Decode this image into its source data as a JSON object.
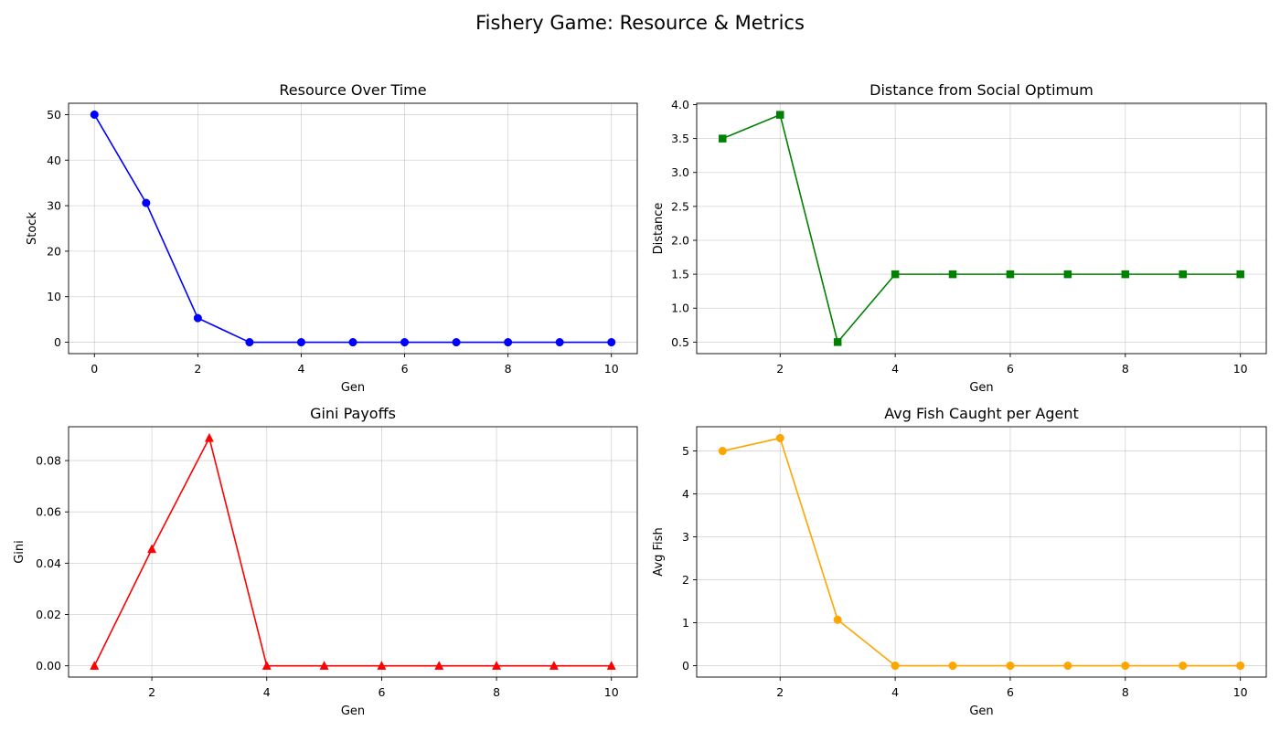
{
  "figure_title": "Fishery Game: Resource & Metrics",
  "chart_data": [
    {
      "id": "resource",
      "type": "line",
      "title": "Resource Over Time",
      "xlabel": "Gen",
      "ylabel": "Stock",
      "x": [
        0,
        1,
        2,
        3,
        4,
        5,
        6,
        7,
        8,
        9,
        10
      ],
      "series": [
        {
          "values": [
            50,
            30.6,
            5.3,
            0,
            0,
            0,
            0,
            0,
            0,
            0,
            0
          ],
          "color": "#0000ff",
          "marker": "circle"
        }
      ],
      "xlim": [
        -0.5,
        10.5
      ],
      "ylim": [
        -2.5,
        52.5
      ],
      "xticks": [
        0,
        2,
        4,
        6,
        8,
        10
      ],
      "yticks": [
        0,
        10,
        20,
        30,
        40,
        50
      ],
      "ytick_labels": [
        "0",
        "10",
        "20",
        "30",
        "40",
        "50"
      ],
      "grid": true
    },
    {
      "id": "distance",
      "type": "line",
      "title": "Distance from Social Optimum",
      "xlabel": "Gen",
      "ylabel": "Distance",
      "x": [
        1,
        2,
        3,
        4,
        5,
        6,
        7,
        8,
        9,
        10
      ],
      "series": [
        {
          "values": [
            3.5,
            3.85,
            0.5,
            1.5,
            1.5,
            1.5,
            1.5,
            1.5,
            1.5,
            1.5
          ],
          "color": "#008000",
          "marker": "square"
        }
      ],
      "xlim": [
        0.55,
        10.45
      ],
      "ylim": [
        0.33,
        4.02
      ],
      "xticks": [
        2,
        4,
        6,
        8,
        10
      ],
      "yticks": [
        0.5,
        1.0,
        1.5,
        2.0,
        2.5,
        3.0,
        3.5,
        4.0
      ],
      "ytick_labels": [
        "0.5",
        "1.0",
        "1.5",
        "2.0",
        "2.5",
        "3.0",
        "3.5",
        "4.0"
      ],
      "grid": true
    },
    {
      "id": "gini",
      "type": "line",
      "title": "Gini Payoffs",
      "xlabel": "Gen",
      "ylabel": "Gini",
      "x": [
        1,
        2,
        3,
        4,
        5,
        6,
        7,
        8,
        9,
        10
      ],
      "series": [
        {
          "values": [
            0,
            0.0455,
            0.0888,
            0,
            0,
            0,
            0,
            0,
            0,
            0
          ],
          "color": "#ff0000",
          "marker": "triangle"
        }
      ],
      "xlim": [
        0.55,
        10.45
      ],
      "ylim": [
        -0.0044,
        0.0932
      ],
      "xticks": [
        2,
        4,
        6,
        8,
        10
      ],
      "yticks": [
        0,
        0.02,
        0.04,
        0.06,
        0.08
      ],
      "ytick_labels": [
        "0.00",
        "0.02",
        "0.04",
        "0.06",
        "0.08"
      ],
      "grid": true
    },
    {
      "id": "avgfish",
      "type": "line",
      "title": "Avg Fish Caught per Agent",
      "xlabel": "Gen",
      "ylabel": "Avg Fish",
      "x": [
        1,
        2,
        3,
        4,
        5,
        6,
        7,
        8,
        9,
        10
      ],
      "series": [
        {
          "values": [
            5.0,
            5.3,
            1.07,
            0,
            0,
            0,
            0,
            0,
            0,
            0
          ],
          "color": "#ffa500",
          "marker": "circle"
        }
      ],
      "xlim": [
        0.55,
        10.45
      ],
      "ylim": [
        -0.265,
        5.565
      ],
      "xticks": [
        2,
        4,
        6,
        8,
        10
      ],
      "yticks": [
        0,
        1,
        2,
        3,
        4,
        5
      ],
      "ytick_labels": [
        "0",
        "1",
        "2",
        "3",
        "4",
        "5"
      ],
      "grid": true
    }
  ]
}
